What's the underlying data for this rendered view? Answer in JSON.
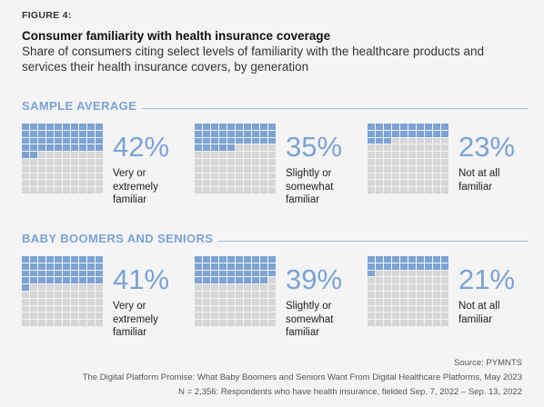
{
  "figure_label": "FIGURE 4:",
  "title": "Consumer familiarity with health insurance coverage",
  "subtitle": "Share of consumers citing select levels of familiarity with the healthcare products and services their health insurance covers, by generation",
  "colors": {
    "filled": "#7ba3d4",
    "empty": "#d6d6d6",
    "accent": "#7ba3d4"
  },
  "chart_data": [
    {
      "type": "waffle",
      "title": "SAMPLE AVERAGE",
      "series": [
        {
          "label": "Very or extremely familiar",
          "label_lines": [
            "Very or",
            "extremely",
            "familiar"
          ],
          "value": 42,
          "value_text": "42%"
        },
        {
          "label": "Slightly or somewhat familiar",
          "label_lines": [
            "Slightly or",
            "somewhat",
            "familiar"
          ],
          "value": 35,
          "value_text": "35%"
        },
        {
          "label": "Not at all familiar",
          "label_lines": [
            "Not at all",
            "familiar"
          ],
          "value": 23,
          "value_text": "23%"
        }
      ]
    },
    {
      "type": "waffle",
      "title": "BABY BOOMERS AND SENIORS",
      "series": [
        {
          "label": "Very or extremely familiar",
          "label_lines": [
            "Very or",
            "extremely",
            "familiar"
          ],
          "value": 41,
          "value_text": "41%"
        },
        {
          "label": "Slightly or somewhat familiar",
          "label_lines": [
            "Slightly or",
            "somewhat",
            "familiar"
          ],
          "value": 39,
          "value_text": "39%"
        },
        {
          "label": "Not at all familiar",
          "label_lines": [
            "Not at all",
            "familiar"
          ],
          "value": 21,
          "value_text": "21%"
        }
      ]
    }
  ],
  "footer": {
    "source": "Source: PYMNTS",
    "report": "The Digital Platform Promise: What Baby Boomers and Seniors Want From Digital Healthcare Platforms, May 2023",
    "sample": "N = 2,356: Respondents who have health insurance, fielded Sep. 7, 2022 – Sep. 13, 2022"
  }
}
